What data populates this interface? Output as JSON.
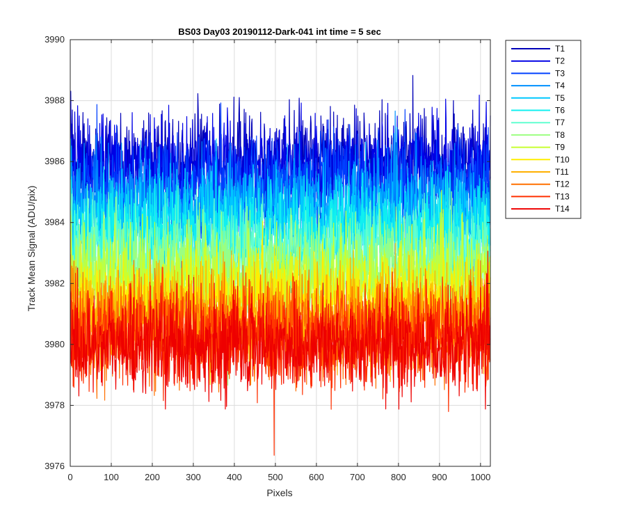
{
  "chart_data": {
    "type": "line",
    "title": "BS03 Day03 20190112-Dark-041 int time = 5 sec",
    "xlabel": "Pixels",
    "ylabel": "Track Mean Signal (ADU/pix)",
    "xlim": [
      0,
      1024
    ],
    "ylim": [
      3976,
      3990
    ],
    "xticks": [
      0,
      100,
      200,
      300,
      400,
      500,
      600,
      700,
      800,
      900,
      1000
    ],
    "yticks": [
      3976,
      3978,
      3980,
      3982,
      3984,
      3986,
      3988,
      3990
    ],
    "grid": true,
    "legend_position": "outside-right",
    "x": {
      "start": 1,
      "end": 1024,
      "step": 1
    },
    "series": [
      {
        "name": "T1",
        "color": "#0000b8",
        "mean": 3986.0,
        "noise": 1.0
      },
      {
        "name": "T2",
        "color": "#0000e6",
        "mean": 3985.8,
        "noise": 1.0
      },
      {
        "name": "T3",
        "color": "#0040ff",
        "mean": 3985.2,
        "noise": 1.0
      },
      {
        "name": "T4",
        "color": "#0090ff",
        "mean": 3984.6,
        "noise": 1.0
      },
      {
        "name": "T5",
        "color": "#00c8ff",
        "mean": 3984.1,
        "noise": 1.0
      },
      {
        "name": "T6",
        "color": "#10f0f0",
        "mean": 3983.6,
        "noise": 1.0
      },
      {
        "name": "T7",
        "color": "#60ffd0",
        "mean": 3983.0,
        "noise": 1.0
      },
      {
        "name": "T8",
        "color": "#9bff80",
        "mean": 3982.5,
        "noise": 1.0
      },
      {
        "name": "T9",
        "color": "#c8ff30",
        "mean": 3982.0,
        "noise": 1.0
      },
      {
        "name": "T10",
        "color": "#ffee00",
        "mean": 3981.4,
        "noise": 1.0
      },
      {
        "name": "T11",
        "color": "#ffb000",
        "mean": 3980.9,
        "noise": 1.0
      },
      {
        "name": "T12",
        "color": "#ff7000",
        "mean": 3980.5,
        "noise": 1.0
      },
      {
        "name": "T13",
        "color": "#ff3000",
        "mean": 3980.2,
        "noise": 1.0
      },
      {
        "name": "T14",
        "color": "#ee0000",
        "mean": 3980.0,
        "noise": 1.0
      }
    ]
  }
}
